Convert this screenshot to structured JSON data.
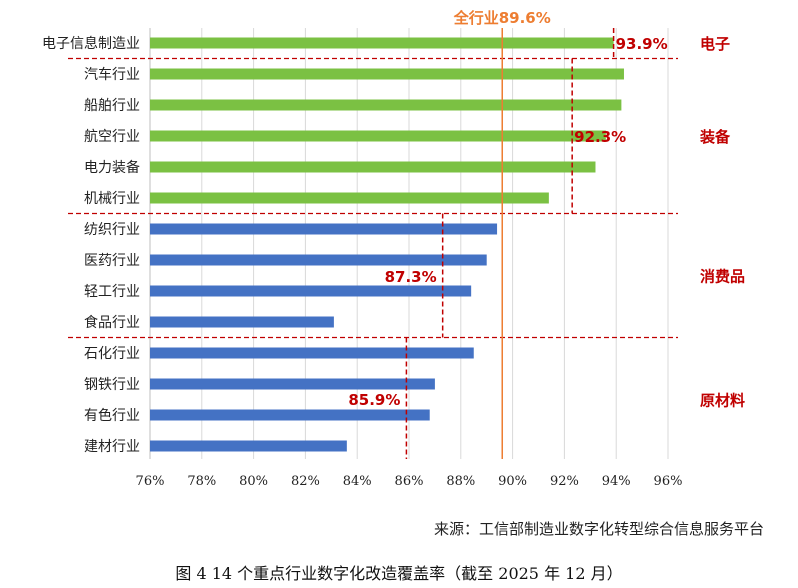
{
  "chart_data": {
    "type": "bar",
    "orientation": "horizontal",
    "categories": [
      "电子信息制造业",
      "汽车行业",
      "船舶行业",
      "航空行业",
      "电力装备",
      "机械行业",
      "纺织行业",
      "医药行业",
      "轻工行业",
      "食品行业",
      "石化行业",
      "钢铁行业",
      "有色行业",
      "建材行业"
    ],
    "values": [
      93.9,
      94.3,
      94.2,
      93.6,
      93.2,
      91.4,
      89.4,
      89.0,
      88.4,
      83.1,
      88.5,
      87.0,
      86.8,
      83.6
    ],
    "bar_colors": [
      "#7bc143",
      "#7bc143",
      "#7bc143",
      "#7bc143",
      "#7bc143",
      "#7bc143",
      "#4472c4",
      "#4472c4",
      "#4472c4",
      "#4472c4",
      "#4472c4",
      "#4472c4",
      "#4472c4",
      "#4472c4"
    ],
    "xlim": [
      76,
      96
    ],
    "xticks": [
      "76%",
      "78%",
      "80%",
      "82%",
      "84%",
      "86%",
      "88%",
      "90%",
      "92%",
      "94%",
      "96%"
    ],
    "reference_line": {
      "label": "全行业89.6%",
      "value": 89.6,
      "color": "#ed7d31"
    },
    "groups": [
      {
        "name": "电子",
        "avg_label": "93.9%",
        "avg": 93.9,
        "start": 0,
        "end": 0,
        "color": "#c00000"
      },
      {
        "name": "装备",
        "avg_label": "92.3%",
        "avg": 92.3,
        "start": 1,
        "end": 5,
        "color": "#c00000"
      },
      {
        "name": "消费品",
        "avg_label": "87.3%",
        "avg": 87.3,
        "start": 6,
        "end": 9,
        "color": "#c00000"
      },
      {
        "name": "原材料",
        "avg_label": "85.9%",
        "avg": 85.9,
        "start": 10,
        "end": 13,
        "color": "#c00000"
      }
    ],
    "grid": true
  },
  "source": "来源：工信部制造业数字化转型综合信息服务平台",
  "caption": "图 4 14 个重点行业数字化改造覆盖率（截至 2025 年 12 月）"
}
